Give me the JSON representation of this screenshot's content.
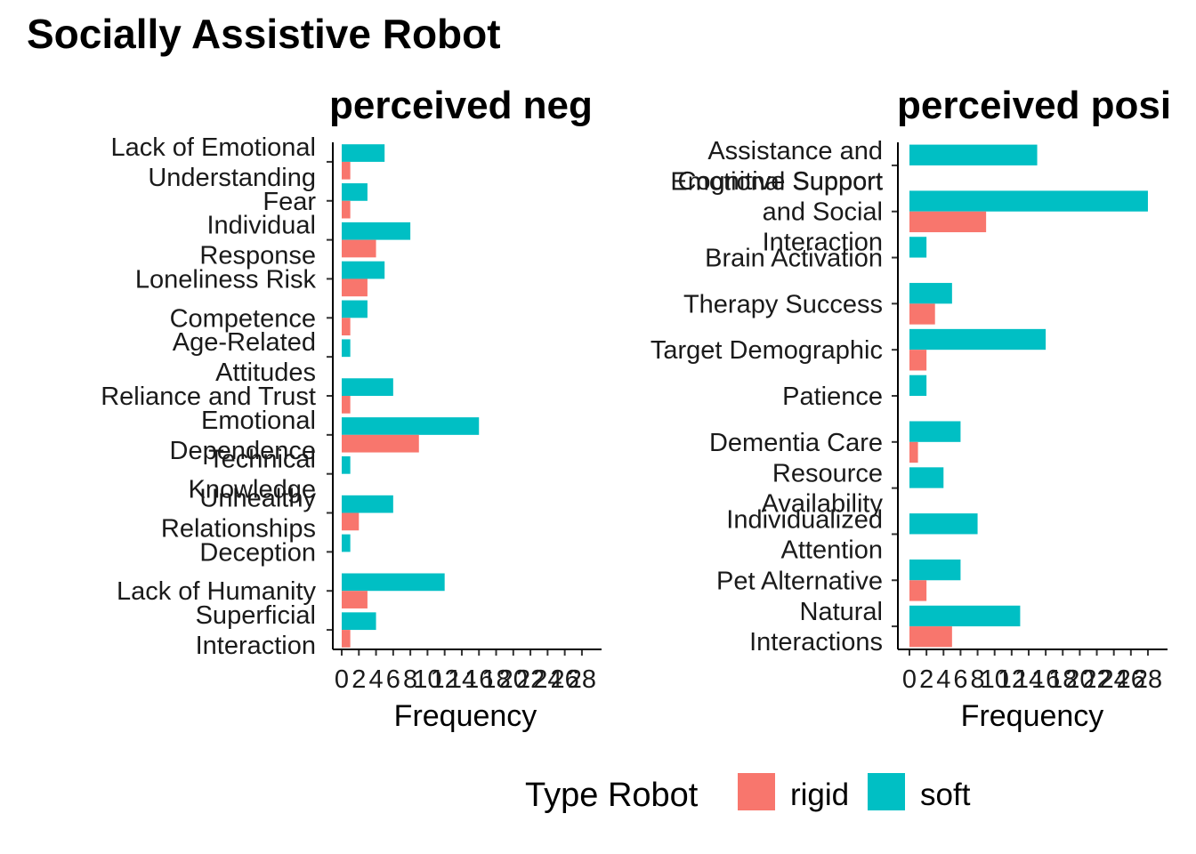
{
  "chart_data": {
    "type": "bar",
    "title": "Socially Assistive Robot",
    "xlabel": "Frequency",
    "legend": {
      "title": "Type Robot",
      "position": "bottom",
      "entries": [
        {
          "name": "rigid",
          "color": "#F8766D"
        },
        {
          "name": "soft",
          "color": "#00BFC4"
        }
      ]
    },
    "xlim": [
      0,
      28
    ],
    "xticks": [
      "0",
      "2",
      "4",
      "6",
      "8",
      "10",
      "12",
      "14",
      "16",
      "18",
      "20",
      "22",
      "24",
      "26",
      "28"
    ],
    "grid": false,
    "facets": [
      {
        "title": "perceived neg",
        "categories": [
          "Lack of Emotional Understanding",
          "Fear",
          "Individual Response",
          "Loneliness Risk",
          "Competence",
          "Age-Related Attitudes",
          "Reliance and Trust",
          "Emotional Dependence",
          "Technical Knowledge",
          "Unhealthy Relationships",
          "Deception",
          "Lack of Humanity",
          "Superficial Interaction"
        ],
        "series": [
          {
            "name": "rigid",
            "values": [
              1,
              1,
              4,
              3,
              1,
              0,
              1,
              9,
              0,
              2,
              0,
              3,
              1
            ]
          },
          {
            "name": "soft",
            "values": [
              5,
              3,
              8,
              5,
              3,
              1,
              6,
              16,
              1,
              6,
              1,
              12,
              4
            ]
          }
        ]
      },
      {
        "title": "perceived posi",
        "categories": [
          "Assistance and Cognitive Support",
          "Emotional Support and Social Interaction",
          "Brain Activation",
          "Therapy Success",
          "Target Demographic",
          "Patience",
          "Dementia Care",
          "Resource Availability",
          "Individualized Attention",
          "Pet Alternative",
          "Natural Interactions"
        ],
        "series": [
          {
            "name": "rigid",
            "values": [
              0,
              9,
              0,
              3,
              2,
              0,
              1,
              0,
              0,
              2,
              5
            ]
          },
          {
            "name": "soft",
            "values": [
              15,
              28,
              2,
              5,
              16,
              2,
              6,
              4,
              8,
              6,
              13
            ]
          }
        ]
      }
    ]
  }
}
